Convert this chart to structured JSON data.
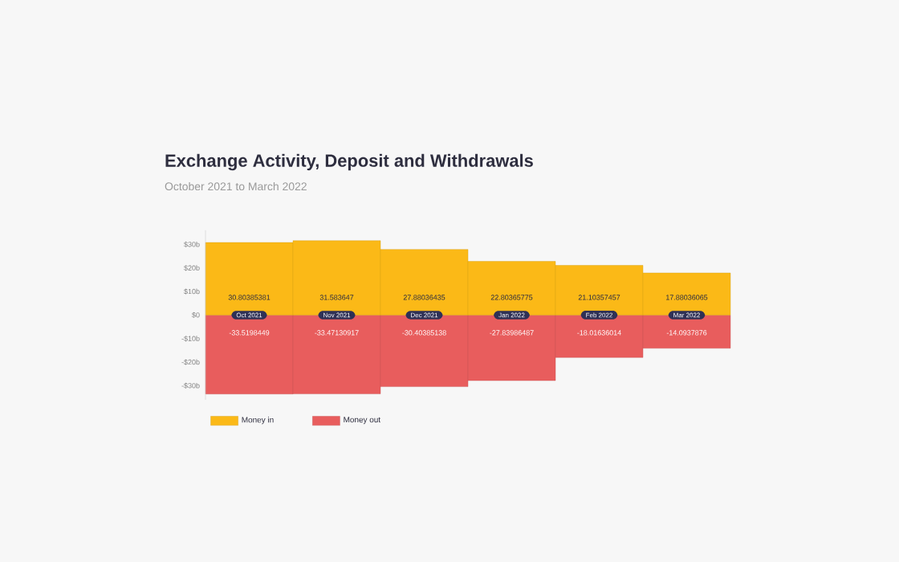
{
  "chart_data": {
    "type": "bar",
    "title": "Exchange Activity, Deposit and Withdrawals",
    "subtitle": "October 2021 to March 2022",
    "categories": [
      "Oct 2021",
      "Nov 2021",
      "Dec 2021",
      "Jan 2022",
      "Feb 2022",
      "Mar 2022"
    ],
    "series": [
      {
        "name": "Money in",
        "color": "#fbb917",
        "values": [
          30.80385381,
          31.583647,
          27.88036435,
          22.80365775,
          21.10357457,
          17.88036065
        ]
      },
      {
        "name": "Money out",
        "color": "#e85d5d",
        "values": [
          -33.5198449,
          -33.47130917,
          -30.40385138,
          -27.83986487,
          -18.01636014,
          -14.0937876
        ]
      }
    ],
    "ylim": [
      -36,
      36
    ],
    "yticks": [
      {
        "value": 30,
        "label": "$30b"
      },
      {
        "value": 20,
        "label": "$20b"
      },
      {
        "value": 10,
        "label": "$10b"
      },
      {
        "value": 0,
        "label": "$0"
      },
      {
        "value": -10,
        "label": "-$10b"
      },
      {
        "value": -20,
        "label": "-$20b"
      },
      {
        "value": -30,
        "label": "-$30b"
      }
    ],
    "stacked": true,
    "data_labels": true,
    "grid": false,
    "legend": "bottom left"
  }
}
